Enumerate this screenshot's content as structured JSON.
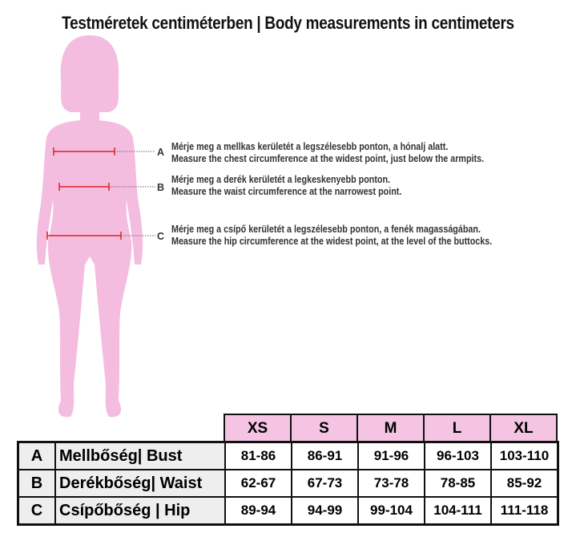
{
  "title": "Testméretek centiméterben | Body measurements in centimeters",
  "colors": {
    "figure": "#f4bde0",
    "marker": "#e02020",
    "header": "#f4c4e2"
  },
  "instructions": [
    {
      "letter": "A",
      "hu": "Mérje meg a mellkas kerületét a legszélesebb ponton, a hónalj alatt.",
      "en": "Measure the chest circumference at the widest point, just below the armpits."
    },
    {
      "letter": "B",
      "hu": "Mérje meg a derék kerületét a legkeskenyebb ponton.",
      "en": "Measure the waist circumference at the narrowest point."
    },
    {
      "letter": "C",
      "hu": "Mérje meg a csípő kerületét a legszélesebb ponton, a fenék magasságában.",
      "en": "Measure the hip circumference at the widest point, at the level of the buttocks."
    }
  ],
  "table": {
    "sizes": [
      "XS",
      "S",
      "M",
      "L",
      "XL"
    ],
    "rows": [
      {
        "key": "A",
        "label": "Mellbőség| Bust",
        "values": [
          "81-86",
          "86-91",
          "91-96",
          "96-103",
          "103-110"
        ]
      },
      {
        "key": "B",
        "label": "Derékbőség| Waist",
        "values": [
          "62-67",
          "67-73",
          "73-78",
          "78-85",
          "85-92"
        ]
      },
      {
        "key": "C",
        "label": "Csípőbőség | Hip",
        "values": [
          "89-94",
          "94-99",
          "99-104",
          "104-111",
          "111-118"
        ]
      }
    ]
  }
}
